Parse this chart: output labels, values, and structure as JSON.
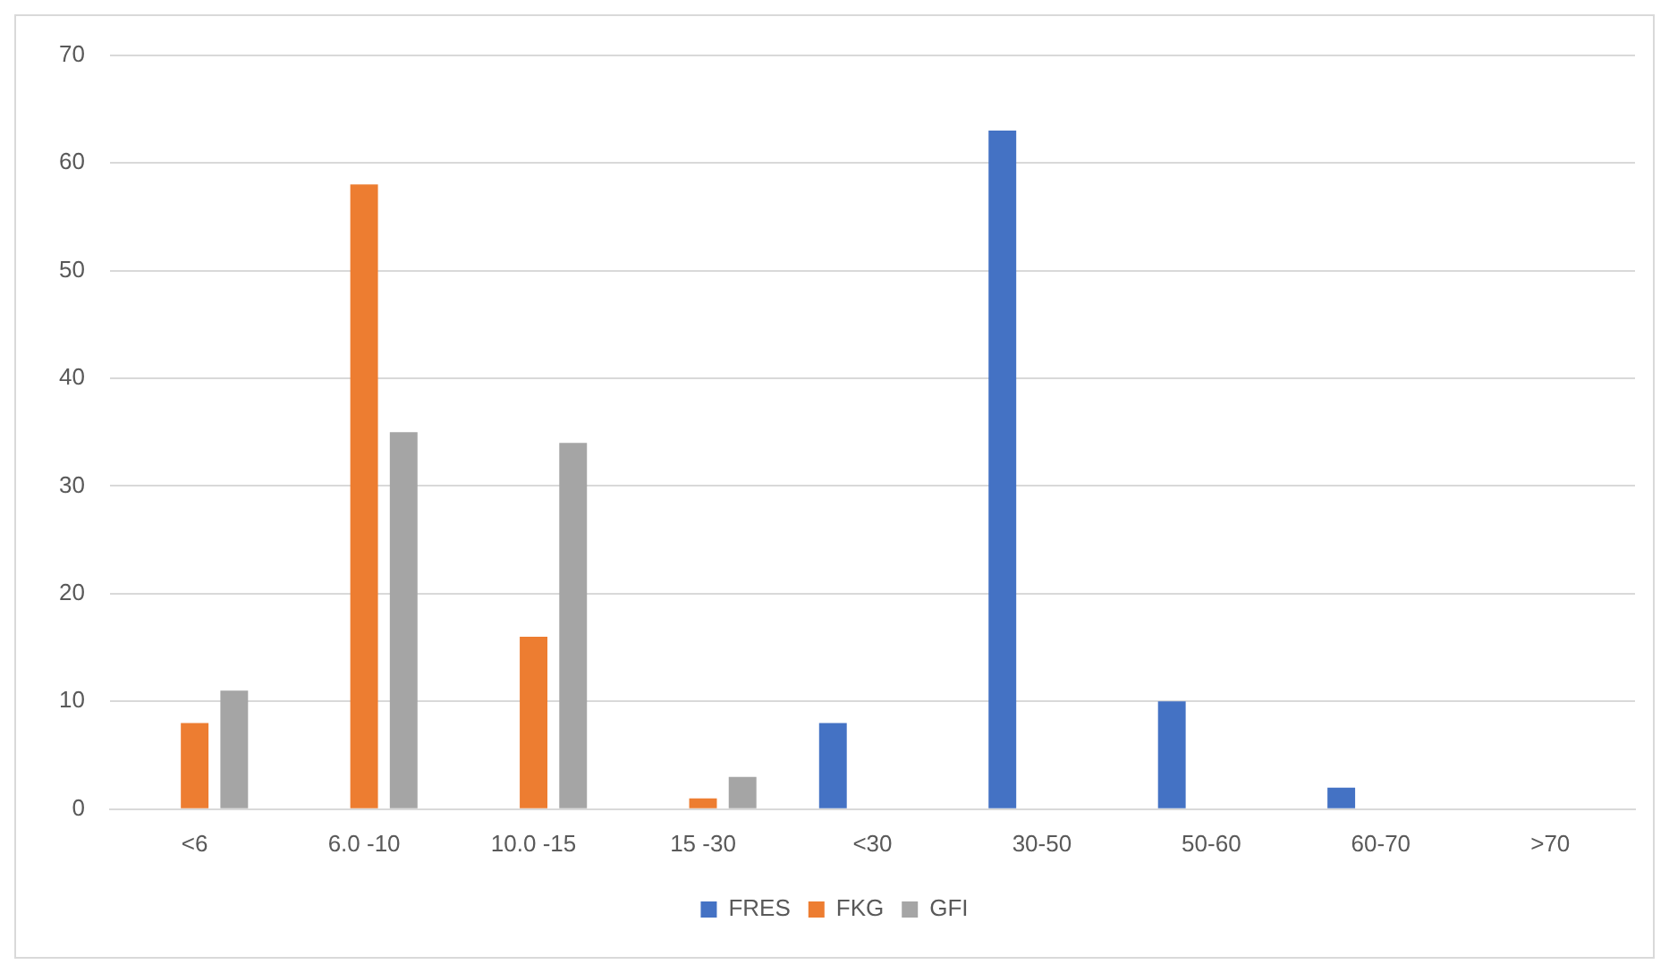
{
  "chart_data": {
    "type": "bar",
    "categories": [
      "<6",
      "6.0 -10",
      "10.0 -15",
      "15 -30",
      "<30",
      "30-50",
      "50-60",
      "60-70",
      ">70"
    ],
    "series": [
      {
        "name": "FRES",
        "color": "#4472c4",
        "values": [
          null,
          null,
          null,
          null,
          8,
          63,
          10,
          2,
          null
        ]
      },
      {
        "name": "FKG",
        "color": "#ed7d31",
        "values": [
          8,
          58,
          16,
          1,
          null,
          null,
          null,
          null,
          null
        ]
      },
      {
        "name": "GFI",
        "color": "#a5a5a5",
        "values": [
          11,
          35,
          34,
          3,
          null,
          null,
          null,
          null,
          null
        ]
      }
    ],
    "ylim": [
      0,
      70
    ],
    "yticks": [
      0,
      10,
      20,
      30,
      40,
      50,
      60,
      70
    ],
    "grid": "y",
    "legend": "bottom"
  }
}
